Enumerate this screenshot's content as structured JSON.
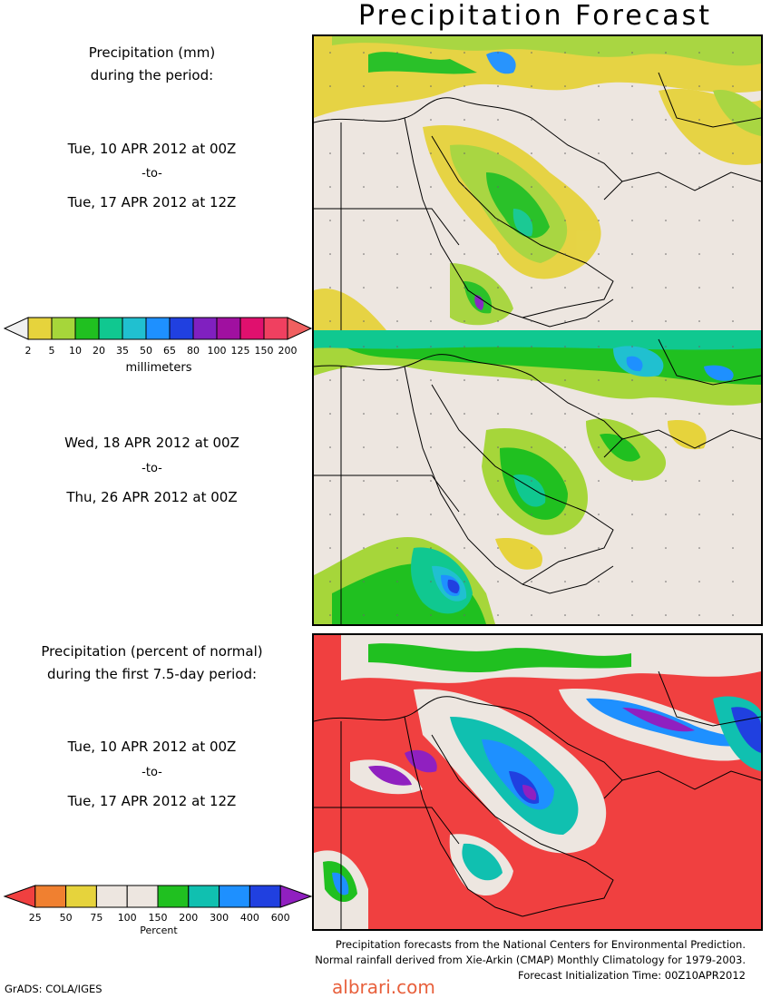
{
  "title": "Precipitation Forecast",
  "panel1": {
    "heading_line1": "Precipitation (mm)",
    "heading_line2": "during the period:",
    "start": "Tue, 10 APR 2012 at 00Z",
    "to": "-to-",
    "end": "Tue, 17 APR 2012 at 12Z"
  },
  "colorbar_mm": {
    "ticks": [
      "2",
      "5",
      "10",
      "20",
      "35",
      "50",
      "65",
      "80",
      "100",
      "125",
      "150",
      "200"
    ],
    "unit": "millimeters",
    "colors": [
      "#f0f0f0",
      "#e6d33c",
      "#a6d63a",
      "#20c020",
      "#10c890",
      "#20c0d0",
      "#1e90ff",
      "#2040e0",
      "#8020c0",
      "#a010a0",
      "#e0106e",
      "#f04060",
      "#f06060"
    ]
  },
  "panel2": {
    "start": "Wed, 18 APR 2012 at 00Z",
    "to": "-to-",
    "end": "Thu, 26 APR 2012 at 00Z"
  },
  "panel3": {
    "heading_line1": "Precipitation (percent of normal)",
    "heading_line2": "during the first 7.5-day period:",
    "start": "Tue, 10 APR 2012 at 00Z",
    "to": "-to-",
    "end": "Tue, 17 APR 2012 at 12Z"
  },
  "colorbar_pct": {
    "ticks": [
      "25",
      "50",
      "75",
      "100",
      "150",
      "200",
      "300",
      "400",
      "600"
    ],
    "unit": "Percent",
    "colors": [
      "#f04040",
      "#f08030",
      "#e6d33c",
      "#ede6e0",
      "#ede6e0",
      "#20c020",
      "#10c0b0",
      "#1e90ff",
      "#2040e0",
      "#9020c0"
    ]
  },
  "footer": {
    "line1": "Precipitation forecasts from the National Centers for Environmental Prediction.",
    "line2": "Normal rainfall derived from Xie-Arkin (CMAP) Monthly Climatology for 1979-2003.",
    "line3": "Forecast Initialization Time: 00Z10APR2012"
  },
  "credit": "GrADS: COLA/IGES",
  "watermark": "albrari.com"
}
